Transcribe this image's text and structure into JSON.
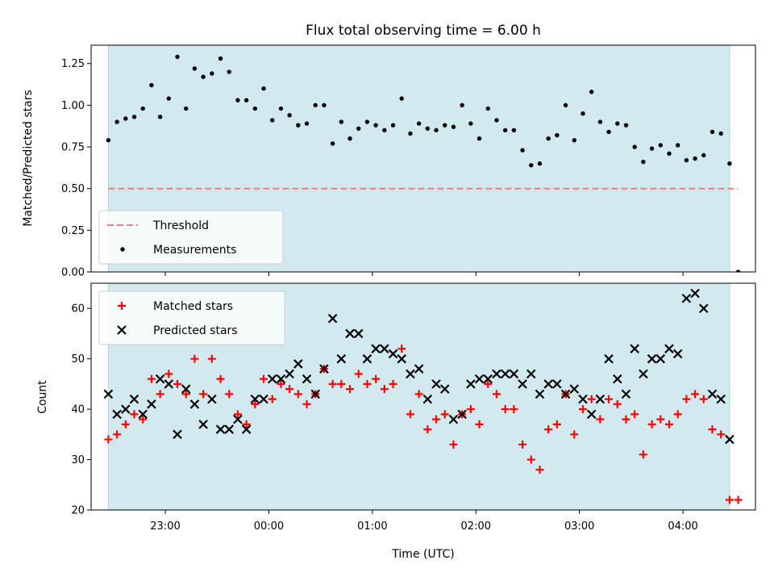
{
  "chart_data": [
    {
      "type": "scatter",
      "title": "Flux total observing time = 6.00 h",
      "xlabel": "",
      "ylabel": "Matched/Predicted stars",
      "xlim": [
        "22:17",
        "04:42"
      ],
      "ylim": [
        0,
        1.36
      ],
      "yticks": [
        "0.00",
        "0.25",
        "0.50",
        "0.75",
        "1.00",
        "1.25"
      ],
      "shaded_span": [
        "22:27",
        "04:27"
      ],
      "shaded_color": "#d3e9f0",
      "threshold": {
        "label": "Threshold",
        "value": 0.5,
        "x_range": [
          "22:27",
          "04:32"
        ],
        "color": "#f08080"
      },
      "legend": [
        "Threshold",
        "Measurements"
      ],
      "legend_position": "lower-left",
      "series": [
        {
          "name": "Measurements",
          "color": "#000000",
          "x": [
            "22:27",
            "22:32",
            "22:37",
            "22:42",
            "22:47",
            "22:52",
            "22:57",
            "23:02",
            "23:07",
            "23:12",
            "23:17",
            "23:22",
            "23:27",
            "23:32",
            "23:37",
            "23:42",
            "23:47",
            "23:52",
            "23:57",
            "00:02",
            "00:07",
            "00:12",
            "00:17",
            "00:22",
            "00:27",
            "00:32",
            "00:37",
            "00:42",
            "00:47",
            "00:52",
            "00:57",
            "01:02",
            "01:07",
            "01:12",
            "01:17",
            "01:22",
            "01:27",
            "01:32",
            "01:37",
            "01:42",
            "01:47",
            "01:52",
            "01:57",
            "02:02",
            "02:07",
            "02:12",
            "02:17",
            "02:22",
            "02:27",
            "02:32",
            "02:37",
            "02:42",
            "02:47",
            "02:52",
            "02:57",
            "03:02",
            "03:07",
            "03:12",
            "03:17",
            "03:22",
            "03:27",
            "03:32",
            "03:37",
            "03:42",
            "03:47",
            "03:52",
            "03:57",
            "04:02",
            "04:07",
            "04:12",
            "04:17",
            "04:22",
            "04:27",
            "04:32"
          ],
          "y": [
            0.79,
            0.9,
            0.92,
            0.93,
            0.98,
            1.12,
            0.93,
            1.04,
            1.29,
            0.98,
            1.22,
            1.17,
            1.19,
            1.28,
            1.2,
            1.03,
            1.03,
            0.98,
            1.1,
            0.91,
            0.98,
            0.94,
            0.88,
            0.89,
            1.0,
            1.0,
            0.77,
            0.9,
            0.8,
            0.86,
            0.9,
            0.88,
            0.85,
            0.88,
            1.04,
            0.83,
            0.89,
            0.86,
            0.85,
            0.88,
            0.87,
            1.0,
            0.89,
            0.8,
            0.98,
            0.91,
            0.85,
            0.85,
            0.73,
            0.64,
            0.65,
            0.8,
            0.82,
            1.0,
            0.79,
            0.95,
            1.08,
            0.9,
            0.84,
            0.89,
            0.88,
            0.75,
            0.66,
            0.74,
            0.76,
            0.71,
            0.76,
            0.67,
            0.68,
            0.7,
            0.84,
            0.83,
            0.65,
            0.0
          ]
        }
      ]
    },
    {
      "type": "scatter",
      "title": "",
      "xlabel": "Time (UTC)",
      "ylabel": "Count",
      "xlim": [
        "22:17",
        "04:42"
      ],
      "ylim": [
        20,
        65
      ],
      "yticks": [
        "20",
        "30",
        "40",
        "50",
        "60"
      ],
      "xticks": [
        "23:00",
        "00:00",
        "01:00",
        "02:00",
        "03:00",
        "04:00"
      ],
      "shaded_span": [
        "22:27",
        "04:27"
      ],
      "shaded_color": "#d3e9f0",
      "legend": [
        "Matched stars",
        "Predicted stars"
      ],
      "legend_position": "upper-left",
      "series": [
        {
          "name": "Matched stars",
          "marker": "plus",
          "color": "#ff0000",
          "x": [
            "22:27",
            "22:32",
            "22:37",
            "22:42",
            "22:47",
            "22:52",
            "22:57",
            "23:02",
            "23:07",
            "23:12",
            "23:17",
            "23:22",
            "23:27",
            "23:32",
            "23:37",
            "23:42",
            "23:47",
            "23:52",
            "23:57",
            "00:02",
            "00:07",
            "00:12",
            "00:17",
            "00:22",
            "00:27",
            "00:32",
            "00:37",
            "00:42",
            "00:47",
            "00:52",
            "00:57",
            "01:02",
            "01:07",
            "01:12",
            "01:17",
            "01:22",
            "01:27",
            "01:32",
            "01:37",
            "01:42",
            "01:47",
            "01:52",
            "01:57",
            "02:02",
            "02:07",
            "02:12",
            "02:17",
            "02:22",
            "02:27",
            "02:32",
            "02:37",
            "02:42",
            "02:47",
            "02:52",
            "02:57",
            "03:02",
            "03:07",
            "03:12",
            "03:17",
            "03:22",
            "03:27",
            "03:32",
            "03:37",
            "03:42",
            "03:47",
            "03:52",
            "03:57",
            "04:02",
            "04:07",
            "04:12",
            "04:17",
            "04:22",
            "04:27",
            "04:32"
          ],
          "y": [
            34,
            35,
            37,
            39,
            38,
            46,
            43,
            47,
            45,
            43,
            50,
            43,
            50,
            46,
            43,
            39,
            37,
            41,
            46,
            42,
            45,
            44,
            43,
            41,
            43,
            48,
            45,
            45,
            44,
            47,
            45,
            46,
            44,
            45,
            52,
            39,
            43,
            36,
            38,
            39,
            33,
            39,
            40,
            37,
            45,
            43,
            40,
            40,
            33,
            30,
            28,
            36,
            37,
            43,
            35,
            40,
            42,
            38,
            42,
            41,
            38,
            39,
            31,
            37,
            38,
            37,
            39,
            42,
            43,
            42,
            36,
            35,
            22,
            22
          ]
        },
        {
          "name": "Predicted stars",
          "marker": "x",
          "color": "#000000",
          "x": [
            "22:27",
            "22:32",
            "22:37",
            "22:42",
            "22:47",
            "22:52",
            "22:57",
            "23:02",
            "23:07",
            "23:12",
            "23:17",
            "23:22",
            "23:27",
            "23:32",
            "23:37",
            "23:42",
            "23:47",
            "23:52",
            "23:57",
            "00:02",
            "00:07",
            "00:12",
            "00:17",
            "00:22",
            "00:27",
            "00:32",
            "00:37",
            "00:42",
            "00:47",
            "00:52",
            "00:57",
            "01:02",
            "01:07",
            "01:12",
            "01:17",
            "01:22",
            "01:27",
            "01:32",
            "01:37",
            "01:42",
            "01:47",
            "01:52",
            "01:57",
            "02:02",
            "02:07",
            "02:12",
            "02:17",
            "02:22",
            "02:27",
            "02:32",
            "02:37",
            "02:42",
            "02:47",
            "02:52",
            "02:57",
            "03:02",
            "03:07",
            "03:12",
            "03:17",
            "03:22",
            "03:27",
            "03:32",
            "03:37",
            "03:42",
            "03:47",
            "03:52",
            "03:57",
            "04:02",
            "04:07",
            "04:12",
            "04:17",
            "04:22",
            "04:27"
          ],
          "y": [
            43,
            39,
            40,
            42,
            39,
            41,
            46,
            45,
            35,
            44,
            41,
            37,
            42,
            36,
            36,
            38,
            36,
            42,
            42,
            46,
            46,
            47,
            49,
            46,
            43,
            48,
            58,
            50,
            55,
            55,
            50,
            52,
            52,
            51,
            50,
            47,
            48,
            42,
            45,
            44,
            38,
            39,
            45,
            46,
            46,
            47,
            47,
            47,
            45,
            47,
            43,
            45,
            45,
            43,
            44,
            42,
            39,
            42,
            50,
            46,
            43,
            52,
            47,
            50,
            50,
            52,
            51,
            62,
            63,
            60,
            43,
            42,
            34
          ]
        }
      ]
    }
  ]
}
